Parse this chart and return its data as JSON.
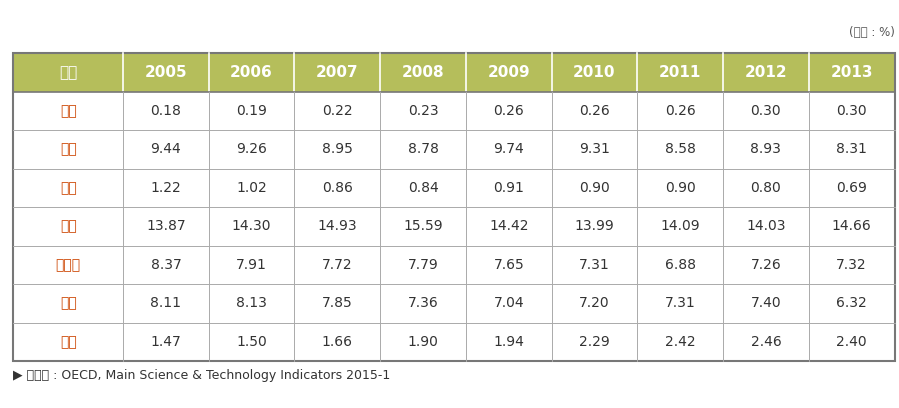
{
  "unit_label": "(단위 : %)",
  "header": [
    "구분",
    "2005",
    "2006",
    "2007",
    "2008",
    "2009",
    "2010",
    "2011",
    "2012",
    "2013"
  ],
  "rows": [
    [
      "한국",
      "0.18",
      "0.19",
      "0.22",
      "0.23",
      "0.26",
      "0.26",
      "0.26",
      "0.30",
      "0.30"
    ],
    [
      "미국",
      "9.44",
      "9.26",
      "8.95",
      "8.78",
      "9.74",
      "9.31",
      "8.58",
      "8.93",
      "8.31"
    ],
    [
      "일본",
      "1.22",
      "1.02",
      "0.86",
      "0.84",
      "0.91",
      "0.90",
      "0.90",
      "0.80",
      "0.69"
    ],
    [
      "독일",
      "13.87",
      "14.30",
      "14.93",
      "15.59",
      "14.42",
      "13.99",
      "14.09",
      "14.03",
      "14.66"
    ],
    [
      "프랑스",
      "8.37",
      "7.91",
      "7.72",
      "7.79",
      "7.65",
      "7.31",
      "6.88",
      "7.26",
      "7.32"
    ],
    [
      "영국",
      "8.11",
      "8.13",
      "7.85",
      "7.36",
      "7.04",
      "7.20",
      "7.31",
      "7.40",
      "6.32"
    ],
    [
      "중국",
      "1.47",
      "1.50",
      "1.66",
      "1.90",
      "1.94",
      "2.29",
      "2.42",
      "2.46",
      "2.40"
    ]
  ],
  "footer": "▶ 자료원 : OECD, Main Science & Technology Indicators 2015-1",
  "header_bg_color": "#b5be5b",
  "header_text_color": "#ffffff",
  "row_text_color": "#333333",
  "korean_cell_color": "#cc4400",
  "number_cell_color": "#333333",
  "border_color": "#999999",
  "header_font_size": 11,
  "cell_font_size": 10,
  "footer_font_size": 9,
  "col_widths_ratio": [
    1.15,
    0.9,
    0.9,
    0.9,
    0.9,
    0.9,
    0.9,
    0.9,
    0.9,
    0.9
  ]
}
